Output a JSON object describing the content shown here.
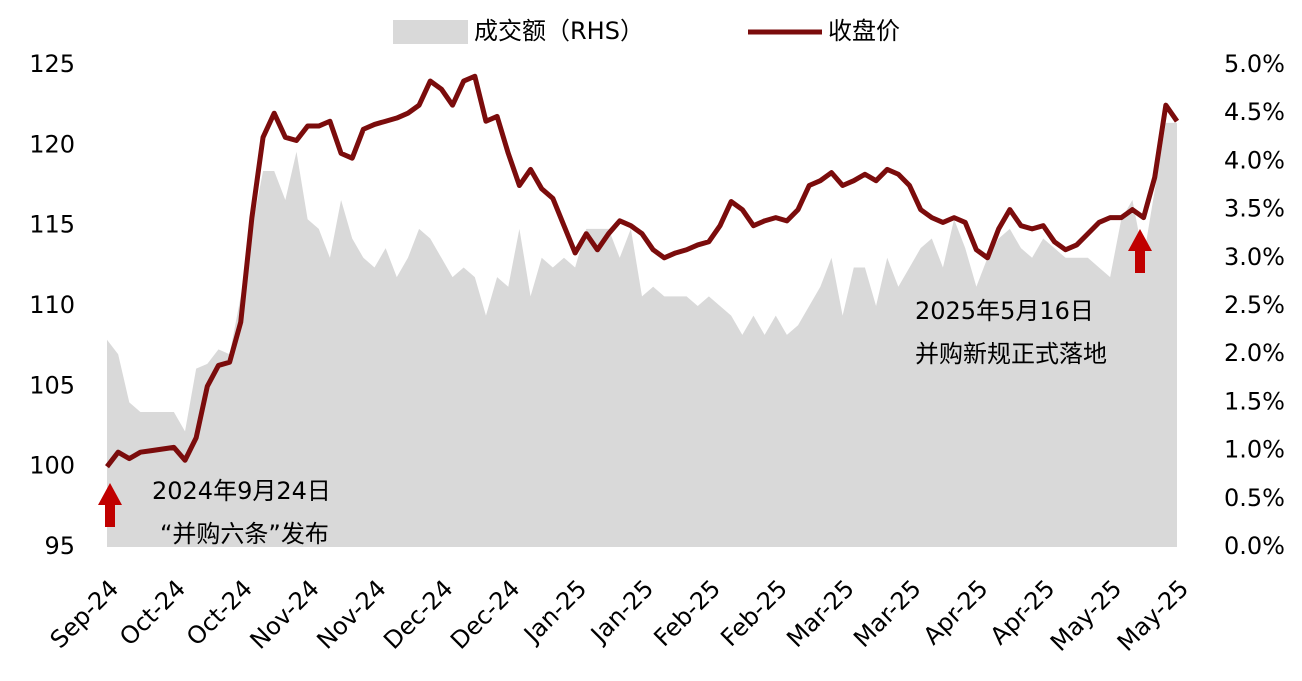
{
  "chart_data": {
    "type": "line",
    "categories": [
      "Sep-24",
      null,
      null,
      null,
      null,
      null,
      "Oct-24",
      null,
      null,
      null,
      null,
      null,
      "Oct-24",
      null,
      null,
      null,
      null,
      null,
      "Nov-24",
      null,
      null,
      null,
      null,
      null,
      "Nov-24",
      null,
      null,
      null,
      null,
      null,
      "Dec-24",
      null,
      null,
      null,
      null,
      null,
      "Dec-24",
      null,
      null,
      null,
      null,
      null,
      "Jan-25",
      null,
      null,
      null,
      null,
      null,
      "Jan-25",
      null,
      null,
      null,
      null,
      null,
      "Feb-25",
      null,
      null,
      null,
      null,
      null,
      "Feb-25",
      null,
      null,
      null,
      null,
      null,
      "Mar-25",
      null,
      null,
      null,
      null,
      null,
      "Mar-25",
      null,
      null,
      null,
      null,
      null,
      "Apr-25",
      null,
      null,
      null,
      null,
      null,
      "Apr-25",
      null,
      null,
      null,
      null,
      null,
      "May-25",
      null,
      null,
      null,
      null,
      null,
      "May-25"
    ],
    "series": [
      {
        "name": "成交额（RHS）",
        "type": "area",
        "axis": "y2",
        "color": "#d9d9d9",
        "values": [
          2.15,
          2.0,
          1.5,
          1.4,
          1.4,
          1.4,
          1.4,
          1.2,
          1.85,
          1.9,
          2.05,
          2.0,
          2.6,
          3.3,
          3.9,
          3.9,
          3.6,
          4.1,
          3.4,
          3.3,
          3.0,
          3.6,
          3.2,
          3.0,
          2.9,
          3.1,
          2.8,
          3.0,
          3.3,
          3.2,
          3.0,
          2.8,
          2.9,
          2.8,
          2.4,
          2.8,
          2.7,
          3.3,
          2.6,
          3.0,
          2.9,
          3.0,
          2.9,
          3.3,
          3.3,
          3.3,
          3.0,
          3.3,
          2.6,
          2.7,
          2.6,
          2.6,
          2.6,
          2.5,
          2.6,
          2.5,
          2.4,
          2.2,
          2.4,
          2.2,
          2.4,
          2.2,
          2.3,
          2.5,
          2.7,
          3.0,
          2.4,
          2.9,
          2.9,
          2.5,
          3.0,
          2.7,
          2.9,
          3.1,
          3.2,
          2.9,
          3.4,
          3.1,
          2.7,
          3.0,
          3.2,
          3.3,
          3.1,
          3.0,
          3.2,
          3.1,
          3.0,
          3.0,
          3.0,
          2.9,
          2.8,
          3.4,
          3.6,
          3.0,
          3.7,
          4.4,
          4.4
        ]
      },
      {
        "name": "收盘价",
        "type": "line",
        "axis": "y",
        "color": "#7b0c0c",
        "values": [
          100,
          100.9,
          100.5,
          100.9,
          101.0,
          101.1,
          101.2,
          100.4,
          101.8,
          105.0,
          106.3,
          106.5,
          109,
          115.5,
          120.5,
          122,
          120.5,
          120.3,
          121.2,
          121.2,
          121.5,
          119.5,
          119.2,
          121.0,
          121.3,
          121.5,
          121.7,
          122,
          122.5,
          124,
          123.5,
          122.5,
          124.0,
          124.3,
          121.5,
          121.8,
          119.5,
          117.5,
          118.5,
          117.3,
          116.7,
          115.0,
          113.3,
          114.5,
          113.5,
          114.5,
          115.3,
          115,
          114.5,
          113.5,
          113.0,
          113.3,
          113.5,
          113.8,
          114.0,
          115.0,
          116.5,
          116,
          115,
          115.3,
          115.5,
          115.3,
          116.0,
          117.5,
          117.8,
          118.3,
          117.5,
          117.8,
          118.2,
          117.8,
          118.5,
          118.2,
          117.5,
          116,
          115.5,
          115.2,
          115.5,
          115.2,
          113.5,
          113.0,
          114.8,
          116.0,
          115,
          114.8,
          115,
          114,
          113.5,
          113.8,
          114.5,
          115.2,
          115.5,
          115.5,
          116,
          115.5,
          118,
          122.5,
          121.5
        ]
      }
    ],
    "ylim": [
      95,
      125
    ],
    "yticks": [
      95,
      100,
      105,
      110,
      115,
      120,
      125
    ],
    "y2lim": [
      0,
      5
    ],
    "y2ticks": [
      {
        "value": 0,
        "label": "0.0%"
      },
      {
        "value": 0.5,
        "label": "0.5%"
      },
      {
        "value": 1,
        "label": "1.0%"
      },
      {
        "value": 1.5,
        "label": "1.5%"
      },
      {
        "value": 2,
        "label": "2.0%"
      },
      {
        "value": 2.5,
        "label": "2.5%"
      },
      {
        "value": 3,
        "label": "3.0%"
      },
      {
        "value": 3.5,
        "label": "3.5%"
      },
      {
        "value": 4,
        "label": "4.0%"
      },
      {
        "value": 4.5,
        "label": "4.5%"
      },
      {
        "value": 5,
        "label": "5.0%"
      }
    ],
    "annotations": [
      "2024年9月24日",
      "“并购六条”发布",
      "2025年5月16日",
      "并购新规正式落地"
    ],
    "legend": "top"
  }
}
